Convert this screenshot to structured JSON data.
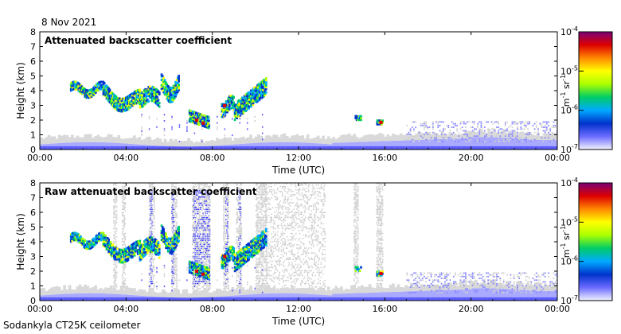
{
  "date_label": "8 Nov 2021",
  "footer_label": "Sodankyla CT25K ceilometer",
  "colorbar": {
    "ticks": [
      "10^-7",
      "10^-6",
      "10^-5",
      "10^-4"
    ],
    "tick_labels": [
      {
        "base": "10",
        "exp": "-7"
      },
      {
        "base": "10",
        "exp": "-6"
      },
      {
        "base": "10",
        "exp": "-5"
      },
      {
        "base": "10",
        "exp": "-4"
      }
    ],
    "unit_label": {
      "m": "m",
      "m_exp": "-1",
      "sr": "sr",
      "sr_exp": "-1"
    },
    "log_scale": true,
    "range": [
      1e-07,
      0.0001
    ],
    "colors": [
      "#f4f4ff",
      "#6b6bff",
      "#0033cc",
      "#00aaff",
      "#00cc66",
      "#aaff00",
      "#ffff00",
      "#ff8800",
      "#dd0000",
      "#7a0077"
    ]
  },
  "chart_data": [
    {
      "type": "heatmap",
      "title": "Attenuated backscatter coefficient",
      "xlabel": "Time (UTC)",
      "ylabel": "Height (km)",
      "x_ticks": [
        "00:00",
        "04:00",
        "08:00",
        "12:00",
        "16:00",
        "20:00",
        "00:00"
      ],
      "y_ticks": [
        "0",
        "1",
        "2",
        "3",
        "4",
        "5",
        "6",
        "7",
        "8"
      ],
      "xlim": [
        "00:00",
        "24:00"
      ],
      "ylim": [
        0,
        8
      ],
      "grid": false
    },
    {
      "type": "heatmap",
      "title": "Raw attenuated backscatter coefficient",
      "xlabel": "Time (UTC)",
      "ylabel": "Height (km)",
      "x_ticks": [
        "00:00",
        "04:00",
        "08:00",
        "12:00",
        "16:00",
        "20:00",
        "00:00"
      ],
      "y_ticks": [
        "0",
        "1",
        "2",
        "3",
        "4",
        "5",
        "6",
        "7",
        "8"
      ],
      "xlim": [
        "00:00",
        "24:00"
      ],
      "ylim": [
        0,
        8
      ],
      "grid": false
    }
  ]
}
